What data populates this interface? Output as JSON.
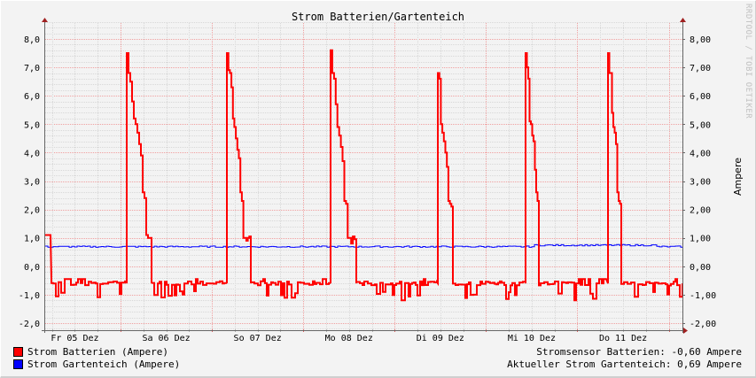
{
  "chart_data": {
    "type": "line",
    "title": "Strom Batterien/Gartenteich",
    "xlabel": "",
    "ylabel": "Ampere",
    "ylim": [
      -2.2,
      8.5
    ],
    "grid": true,
    "legend_position": "bottom-left",
    "left_axis_ticks": [
      "8,0",
      "7,0",
      "6,0",
      "5,0",
      "4,0",
      "3,0",
      "2,0",
      "1,0",
      "0,0",
      "-1,0",
      "-2,0"
    ],
    "right_axis_ticks": [
      "8,00",
      "7,00",
      "6,00",
      "5,00",
      "4,00",
      "3,00",
      "2,00",
      "1,00",
      "0,00",
      "-1,00",
      "-2,00"
    ],
    "categories": [
      "Fr 05 Dez",
      "Sa 06 Dez",
      "So 07 Dez",
      "Mo 08 Dez",
      "Di 09 Dez",
      "Mi 10 Dez",
      "Do 11 Dez"
    ],
    "series": [
      {
        "name": "Strom Batterien (Ampere)",
        "color": "#ff0000",
        "description": "Daily charge peak ~7.5 A decaying to ~1 A, then baseline around -0.6 A with dips to -1.3 A",
        "daily_peaks": [
          7.5,
          7.5,
          7.6,
          6.8,
          7.5,
          7.5
        ],
        "baseline": -0.6,
        "min": -1.3
      },
      {
        "name": "Strom Gartenteich (Ampere)",
        "color": "#0000ff",
        "description": "Nearly constant around 0.69-0.75 A",
        "baseline": 0.69
      }
    ],
    "annotations": [
      "Stromsensor Batterien: -0,60 Ampere",
      "Aktueller Strom Gartenteich: 0,69 Ampere"
    ]
  },
  "header": {
    "title": "Strom Batterien/Gartenteich",
    "watermark": "RRDTOOL / TOBI OETIKER"
  },
  "axis": {
    "right_label": "Ampere"
  },
  "legend": [
    {
      "label": "Strom Batterien (Ampere)",
      "color": "#ff0000"
    },
    {
      "label": "Strom Gartenteich (Ampere)",
      "color": "#0000ff"
    }
  ],
  "stats": {
    "batterien": "Stromsensor Batterien: -0,60 Ampere",
    "gartenteich": "Aktueller Strom Gartenteich: 0,69 Ampere"
  }
}
